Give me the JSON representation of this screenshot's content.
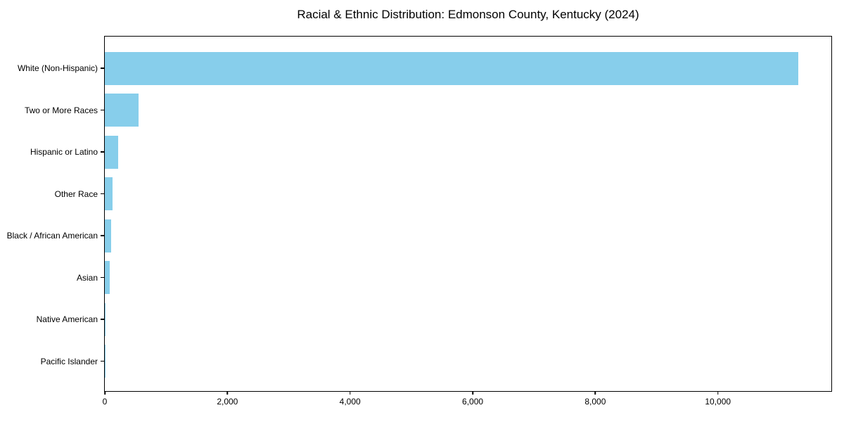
{
  "colors": {
    "bar": "#87CEEB",
    "axis": "#000000",
    "background": "#FFFFFF",
    "text": "#000000"
  },
  "chart_data": {
    "type": "bar",
    "orientation": "horizontal",
    "title": "Racial & Ethnic Distribution: Edmonson County, Kentucky (2024)",
    "xlabel": "",
    "ylabel": "",
    "categories": [
      "White (Non-Hispanic)",
      "Two or More Races",
      "Hispanic or Latino",
      "Other Race",
      "Black / African American",
      "Asian",
      "Native American",
      "Pacific Islander"
    ],
    "values": [
      11315,
      550,
      215,
      130,
      100,
      85,
      12,
      3
    ],
    "bar_color": "#87CEEB",
    "xlim": [
      0,
      11850
    ],
    "xticks": [
      {
        "value": 0,
        "label": "0"
      },
      {
        "value": 2000,
        "label": "2,000"
      },
      {
        "value": 4000,
        "label": "4,000"
      },
      {
        "value": 6000,
        "label": "6,000"
      },
      {
        "value": 8000,
        "label": "8,000"
      },
      {
        "value": 10000,
        "label": "10,000"
      }
    ],
    "grid": false,
    "legend": null
  }
}
